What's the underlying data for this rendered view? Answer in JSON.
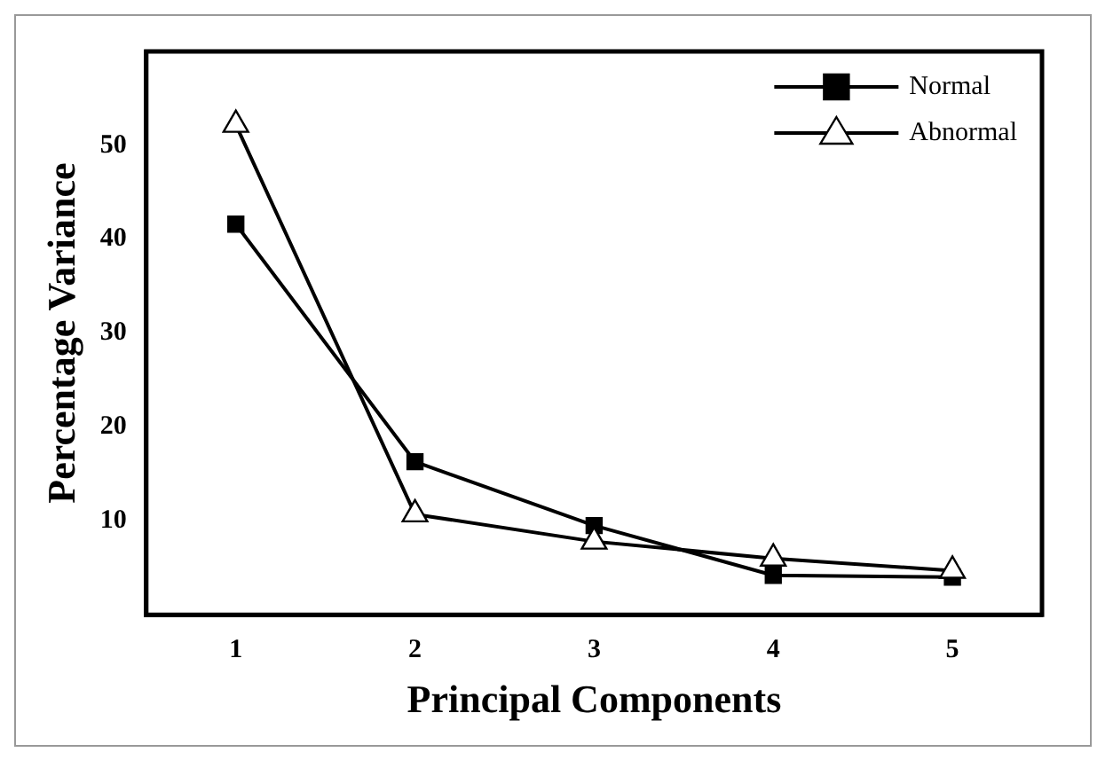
{
  "chart_data": {
    "type": "line",
    "xlabel": "Principal Components",
    "ylabel": "Percentage Variance",
    "x": [
      1,
      2,
      3,
      4,
      5
    ],
    "xlim": [
      0.5,
      5.5
    ],
    "xticks": [
      1,
      2,
      3,
      4,
      5
    ],
    "ylim": [
      0,
      60
    ],
    "yticks": [
      10,
      20,
      30,
      40,
      50
    ],
    "series": [
      {
        "name": "Normal",
        "color": "#000000",
        "marker": "square",
        "values": [
          41.6,
          16.3,
          9.5,
          4.2,
          4.0
        ]
      },
      {
        "name": "Abnormal",
        "color": "#000000",
        "marker": "triangle",
        "values": [
          52.2,
          10.7,
          7.8,
          6.0,
          4.7
        ]
      }
    ],
    "legend": "top right",
    "grid": false,
    "line_style": "solid"
  }
}
